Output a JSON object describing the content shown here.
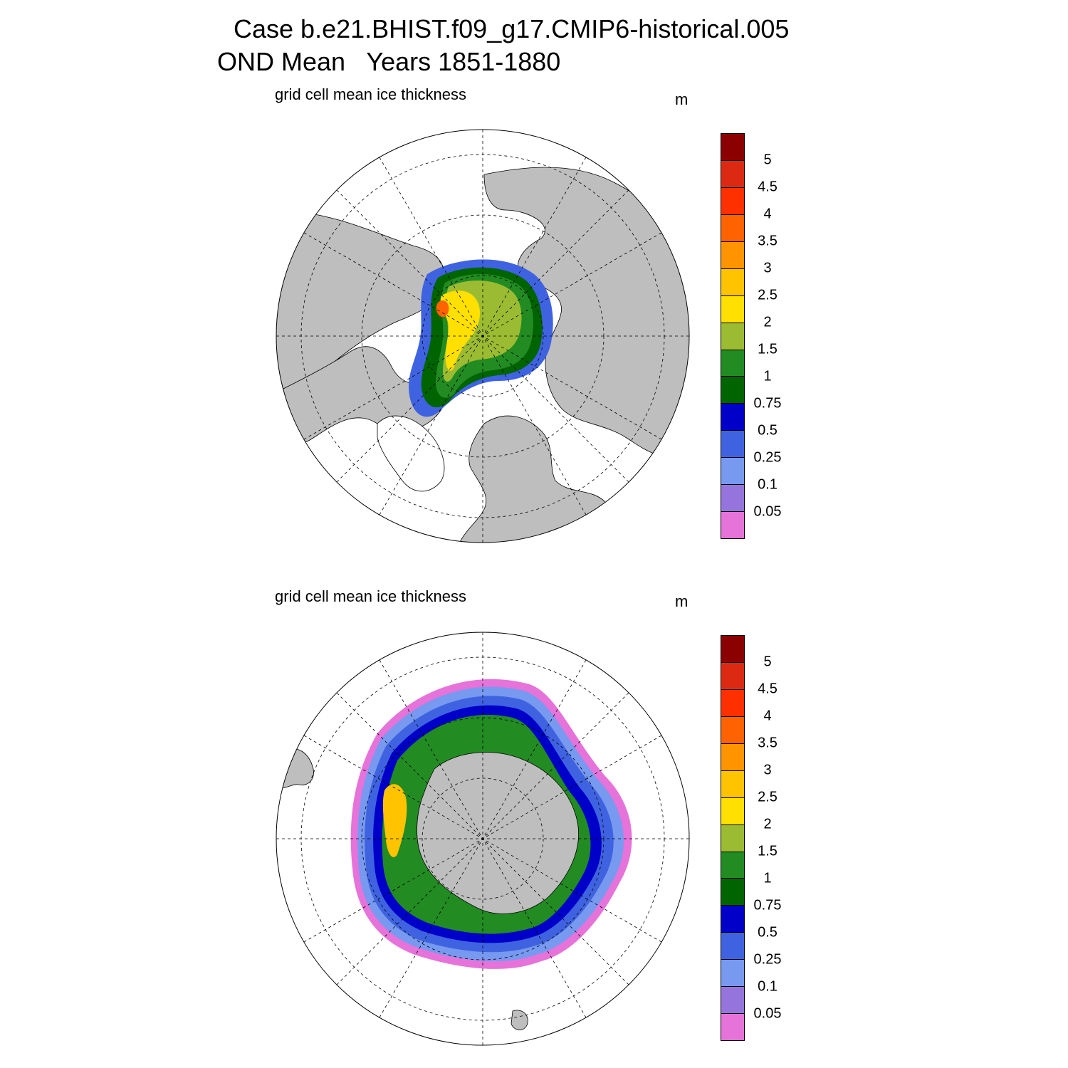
{
  "title_line1": "Case b.e21.BHIST.f09_g17.CMIP6-historical.005",
  "title_line2": "OND Mean   Years 1851-1880",
  "panels": [
    {
      "id": "north",
      "subtitle": "grid cell mean ice thickness",
      "unit": "m"
    },
    {
      "id": "south",
      "subtitle": "grid cell mean ice thickness",
      "unit": "m"
    }
  ],
  "colorbar": {
    "labels": [
      "0.05",
      "0.1",
      "0.25",
      "0.5",
      "0.75",
      "1",
      "1.5",
      "2",
      "2.5",
      "3",
      "3.5",
      "4",
      "4.5",
      "5"
    ],
    "colors": [
      "#e573d9",
      "#9575dd",
      "#7799f0",
      "#3f63e0",
      "#0000c8",
      "#006400",
      "#228b22",
      "#9bbc32",
      "#ffe000",
      "#ffc300",
      "#ff9400",
      "#ff6200",
      "#ff3000",
      "#dc2a12",
      "#8b0000"
    ]
  },
  "colors": {
    "land": "#bebebe",
    "ocean": "#ffffff"
  }
}
